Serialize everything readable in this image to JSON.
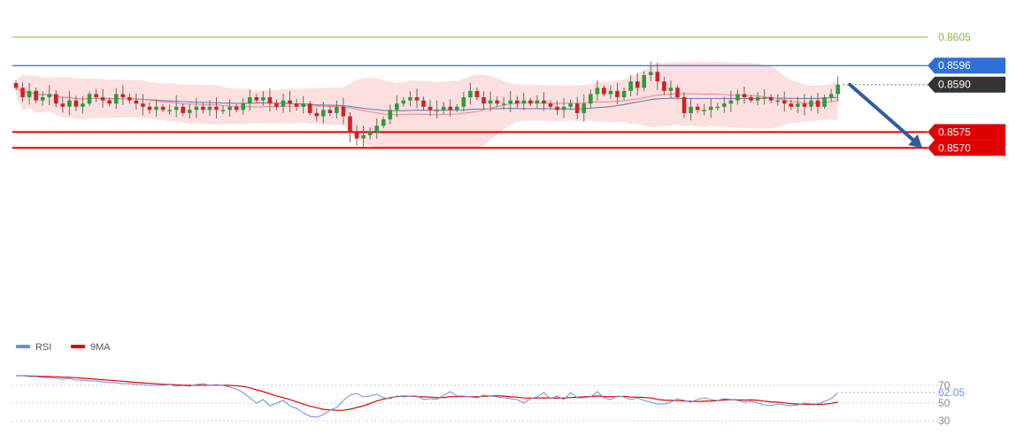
{
  "chart_data": [
    {
      "type": "candlestick",
      "panel": "price",
      "grid": false,
      "ylim": [
        0.8567,
        0.8609
      ],
      "levels": [
        {
          "name": "level-0.8605",
          "value": 0.8605,
          "label": "0.8605",
          "color": "#7dbb42",
          "kind": "text"
        },
        {
          "name": "level-0.8596",
          "value": 0.8596,
          "label": "0.8596",
          "color": "#2e6fd8",
          "kind": "tag"
        },
        {
          "name": "level-0.8590",
          "value": 0.859,
          "label": "0.8590",
          "color": "#333333",
          "kind": "tag-dotted"
        },
        {
          "name": "level-0.8575",
          "value": 0.8575,
          "label": "0.8575",
          "color": "#e00000",
          "kind": "tag"
        },
        {
          "name": "level-0.8570",
          "value": 0.857,
          "label": "0.8570",
          "color": "#e00000",
          "kind": "tag"
        }
      ],
      "forecast_arrow": {
        "from": [
          124,
          0.859
        ],
        "to": [
          154,
          0.857
        ],
        "color": "#2e5d9e"
      },
      "closes": [
        0.8589,
        0.8586,
        0.8588,
        0.8585,
        0.8586,
        0.8587,
        0.8584,
        0.8583,
        0.8585,
        0.8583,
        0.8584,
        0.8587,
        0.8586,
        0.8585,
        0.8584,
        0.8587,
        0.8586,
        0.8585,
        0.8584,
        0.8583,
        0.8582,
        0.8583,
        0.8582,
        0.8582,
        0.8583,
        0.8581,
        0.8582,
        0.8583,
        0.8582,
        0.8583,
        0.8582,
        0.8582,
        0.8583,
        0.8582,
        0.8584,
        0.8586,
        0.8585,
        0.8586,
        0.8584,
        0.8583,
        0.8585,
        0.8584,
        0.8583,
        0.8584,
        0.8581,
        0.858,
        0.8582,
        0.8581,
        0.8583,
        0.858,
        0.8575,
        0.8573,
        0.8574,
        0.8575,
        0.8577,
        0.8579,
        0.8582,
        0.8584,
        0.8585,
        0.8586,
        0.8585,
        0.8583,
        0.8582,
        0.8582,
        0.8583,
        0.8582,
        0.8583,
        0.8586,
        0.8588,
        0.8586,
        0.8584,
        0.8585,
        0.8584,
        0.8584,
        0.8585,
        0.8584,
        0.8585,
        0.8584,
        0.8585,
        0.8584,
        0.8583,
        0.8582,
        0.8583,
        0.8584,
        0.8581,
        0.8584,
        0.8587,
        0.8589,
        0.8587,
        0.8588,
        0.8586,
        0.8588,
        0.8591,
        0.8589,
        0.8593,
        0.8594,
        0.8591,
        0.8588,
        0.8589,
        0.8586,
        0.8581,
        0.8583,
        0.8582,
        0.8582,
        0.8583,
        0.8583,
        0.8584,
        0.8585,
        0.8587,
        0.8586,
        0.8585,
        0.8586,
        0.8586,
        0.8585,
        0.8585,
        0.8584,
        0.8583,
        0.8584,
        0.8583,
        0.8585,
        0.8583,
        0.8586,
        0.8587,
        0.859
      ]
    },
    {
      "type": "line",
      "panel": "oscillator",
      "series": [
        {
          "name": "RSI",
          "color": "#6b8fe0"
        },
        {
          "name": "9MA",
          "color": "#e00000"
        }
      ],
      "y_ticks": [
        70,
        50,
        30
      ],
      "ylim": [
        25,
        85
      ],
      "last_value": "62.05",
      "rsi": [
        81,
        81,
        80,
        80,
        79,
        79,
        78,
        77,
        78,
        76,
        76,
        75,
        75,
        74,
        73,
        73,
        72,
        72,
        71,
        71,
        70,
        70,
        70,
        71,
        69,
        70,
        69,
        71,
        72,
        70,
        71,
        70,
        68,
        66,
        62,
        56,
        50,
        54,
        47,
        50,
        53,
        47,
        44,
        39,
        35,
        34,
        37,
        42,
        45,
        53,
        59,
        61,
        57,
        58,
        60,
        56,
        55,
        58,
        57,
        58,
        58,
        54,
        55,
        54,
        59,
        63,
        58,
        58,
        57,
        56,
        59,
        58,
        57,
        56,
        55,
        54,
        50,
        55,
        57,
        62,
        55,
        58,
        54,
        62,
        56,
        56,
        57,
        63,
        56,
        54,
        58,
        57,
        54,
        56,
        53,
        51,
        49,
        49,
        51,
        55,
        53,
        51,
        54,
        56,
        54,
        53,
        55,
        54,
        53,
        51,
        52,
        50,
        48,
        47,
        49,
        48,
        47,
        48,
        50,
        49,
        49,
        52,
        55,
        62
      ]
    }
  ],
  "legend": [
    {
      "name": "legend-rsi",
      "label": "RSI",
      "color": "#6b8fe0"
    },
    {
      "name": "legend-9ma",
      "label": "9MA",
      "color": "#e00000"
    }
  ],
  "colors": {
    "up": "#2a9d3a",
    "down": "#d42020",
    "bollinger_fill": "#fbd9d9",
    "ma_slow": "#6b7fb8",
    "ma_fast": "#f08a8a"
  }
}
